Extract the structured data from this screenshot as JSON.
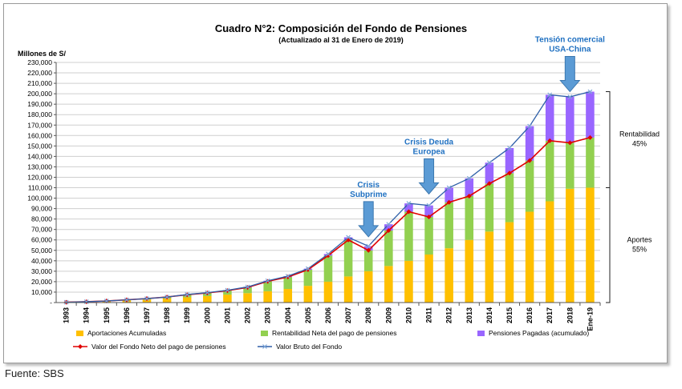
{
  "chart_data": {
    "type": "bar",
    "stacked": true,
    "title": "Cuadro N°2: Composición del Fondo de Pensiones",
    "subtitle": "(Actualizado al 31 de Enero de 2019)",
    "ylabel": "Millones de S/",
    "ylim": [
      0,
      230000
    ],
    "ytick_step": 10000,
    "ytick_labels": [
      "-",
      "10,000",
      "20,000",
      "30,000",
      "40,000",
      "50,000",
      "60,000",
      "70,000",
      "80,000",
      "90,000",
      "100,000",
      "110,000",
      "120,000",
      "130,000",
      "140,000",
      "150,000",
      "160,000",
      "170,000",
      "180,000",
      "190,000",
      "200,000",
      "210,000",
      "220,000",
      "230,000"
    ],
    "grid": true,
    "legend_position": "bottom",
    "categories": [
      "1993",
      "1994",
      "1995",
      "1996",
      "1997",
      "1998",
      "1999",
      "2000",
      "2001",
      "2002",
      "2003",
      "2004",
      "2005",
      "2006",
      "2007",
      "2008",
      "2009",
      "2010",
      "2011",
      "2012",
      "2013",
      "2014",
      "2015",
      "2016",
      "2017",
      "2018",
      "Ene-19"
    ],
    "series": [
      {
        "name": "Aportaciones Acumuladas",
        "kind": "bar",
        "color": "#FFC000",
        "values": [
          200,
          600,
          1200,
          2000,
          2800,
          3800,
          5000,
          6200,
          7600,
          9000,
          10800,
          13000,
          16000,
          20000,
          25000,
          30000,
          35000,
          40000,
          46000,
          52000,
          60000,
          68000,
          77000,
          87000,
          97000,
          109000,
          110000
        ]
      },
      {
        "name": "Rentabilidad Neta del pago de pensiones",
        "kind": "bar",
        "color": "#92D050",
        "values": [
          100,
          200,
          300,
          600,
          1000,
          1500,
          2500,
          3000,
          3800,
          5500,
          9500,
          11500,
          15500,
          25000,
          35000,
          20000,
          34000,
          47000,
          36000,
          44000,
          42000,
          46000,
          47000,
          49000,
          58000,
          44000,
          48000
        ]
      },
      {
        "name": "Pensiones Pagadas (acumulado)",
        "kind": "bar",
        "color": "#9966FF",
        "values": [
          0,
          0,
          0,
          0,
          0,
          0,
          200,
          300,
          400,
          500,
          600,
          800,
          1000,
          1500,
          2500,
          4000,
          6000,
          8000,
          11000,
          14000,
          17000,
          20000,
          24000,
          33000,
          44000,
          44000,
          44000
        ]
      },
      {
        "name": "Valor del Fondo Neto del pago de pensiones",
        "kind": "line",
        "color": "#E00000",
        "marker": "diamond",
        "values": [
          300,
          800,
          1500,
          2600,
          3800,
          5300,
          7500,
          9200,
          11400,
          14500,
          20300,
          24500,
          31500,
          45000,
          60000,
          50000,
          69000,
          87000,
          82000,
          96000,
          102000,
          114000,
          124000,
          136000,
          155000,
          153000,
          158000
        ]
      },
      {
        "name": "Valor Bruto del Fondo",
        "kind": "line",
        "color": "#2E5FA8",
        "marker": "x",
        "values": [
          300,
          800,
          1500,
          2600,
          3800,
          5300,
          7700,
          9500,
          11800,
          15000,
          20900,
          25300,
          32500,
          46500,
          62500,
          54000,
          75000,
          95000,
          93000,
          110000,
          119000,
          134000,
          148000,
          169000,
          199000,
          197000,
          202000
        ]
      }
    ],
    "annotations": [
      {
        "lines": [
          "Crisis",
          "Subprime"
        ],
        "category": "2008",
        "arrow_tip_value": 63000,
        "color": "#1F70C1"
      },
      {
        "lines": [
          "Crisis Deuda",
          "Europea"
        ],
        "category": "2011",
        "arrow_tip_value": 104000,
        "color": "#1F70C1"
      },
      {
        "lines": [
          "Tensión comercial",
          "USA-China"
        ],
        "category": "2018",
        "arrow_tip_value": 202000,
        "color": "#1F70C1"
      }
    ],
    "brackets": [
      {
        "label": "Rentabilidad",
        "value_label": "45%",
        "from": 110000,
        "to": 202000
      },
      {
        "label": "Aportes",
        "value_label": "55%",
        "from": 0,
        "to": 110000
      }
    ]
  },
  "source": "Fuente: SBS"
}
